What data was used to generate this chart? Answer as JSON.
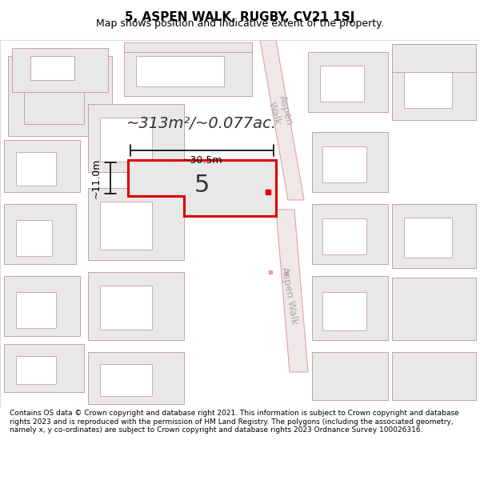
{
  "title": "5, ASPEN WALK, RUGBY, CV21 1SJ",
  "subtitle": "Map shows position and indicative extent of the property.",
  "footer": "Contains OS data © Crown copyright and database right 2021. This information is subject to Crown copyright and database rights 2023 and is reproduced with the permission of HM Land Registry. The polygons (including the associated geometry, namely x, y co-ordinates) are subject to Crown copyright and database rights 2023 Ordnance Survey 100026316.",
  "map_bg": "#f5f5f5",
  "title_color": "#000000",
  "footer_color": "#000000",
  "road_color_light": "#e8a0a0",
  "building_fill": "#e8e8e8",
  "building_outline": "#c8a0a0",
  "highlight_fill": "#e8e8e8",
  "highlight_outline": "#dd0000",
  "road_label_color": "#aaaaaa",
  "annotation_color": "#000000",
  "marker_color": "#dd0000",
  "area_text": "~313m²/~0.077ac.",
  "dim_h": "~11.0m",
  "dim_w": "~30.5m",
  "label_5": "5"
}
